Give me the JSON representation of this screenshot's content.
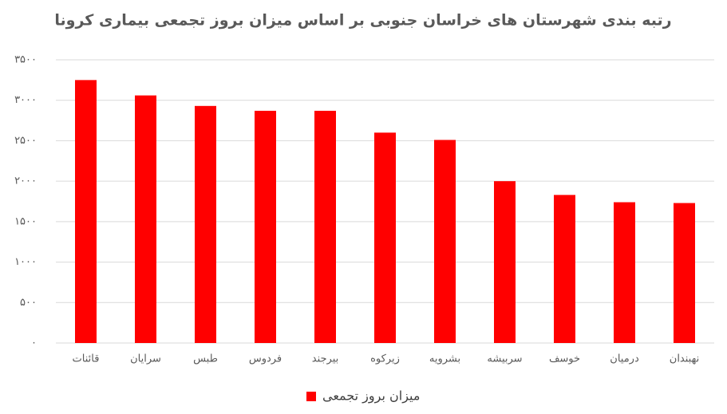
{
  "chart_data": {
    "type": "bar",
    "title": "رتبه بندی شهرستان های خراسان جنوبی بر اساس میزان بروز تجمعی  بیماری کرونا",
    "categories": [
      "قائنات",
      "سرایان",
      "طبس",
      "فردوس",
      "بیرجند",
      "زیرکوه",
      "بشرویه",
      "سربیشه",
      "خوسف",
      "درمیان",
      "نهبندان"
    ],
    "series": [
      {
        "name": "میزان بروز تجمعی",
        "color": "#ff0000",
        "values": [
          3250,
          3060,
          2930,
          2870,
          2870,
          2600,
          2510,
          2000,
          1830,
          1740,
          1730
        ]
      }
    ],
    "ylim": [
      0,
      3500
    ],
    "yticks": [
      {
        "value": 0,
        "label": "۰"
      },
      {
        "value": 500,
        "label": "۵۰۰"
      },
      {
        "value": 1000,
        "label": "۱۰۰۰"
      },
      {
        "value": 1500,
        "label": "۱۵۰۰"
      },
      {
        "value": 2000,
        "label": "۲۰۰۰"
      },
      {
        "value": 2500,
        "label": "۲۵۰۰"
      },
      {
        "value": 3000,
        "label": "۳۰۰۰"
      },
      {
        "value": 3500,
        "label": "۳۵۰۰"
      }
    ],
    "grid": true,
    "legend": "bottom"
  }
}
